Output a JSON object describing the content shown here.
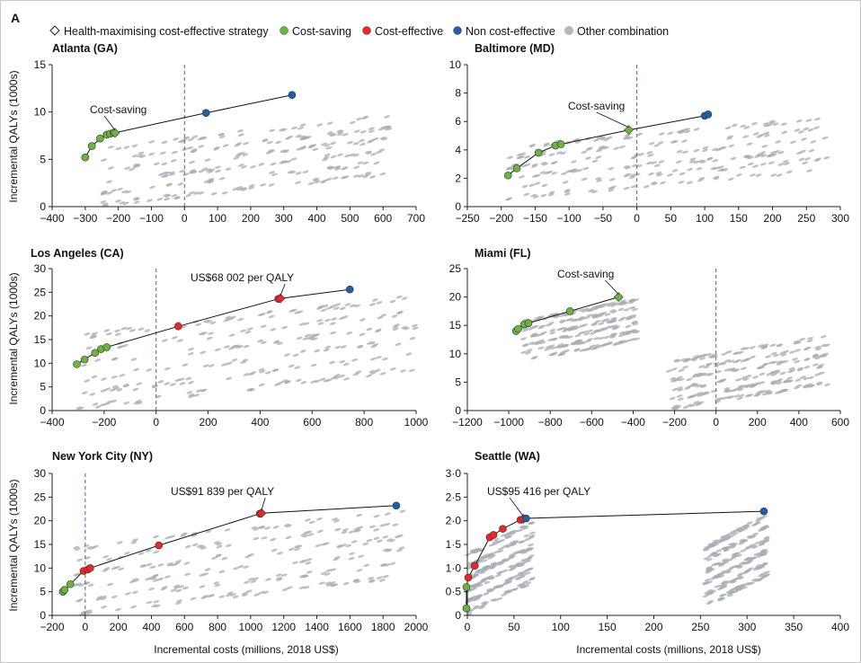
{
  "figure": {
    "panel_letter": "A",
    "x_axis_title": "Incremental costs (millions, 2018 US$)",
    "y_axis_title": "Incremental QALYs (1000s)"
  },
  "legend": [
    {
      "key": "health",
      "label": "Health-maximising cost-effective strategy",
      "marker": "diamond",
      "color": "#ffffff"
    },
    {
      "key": "saving",
      "label": "Cost-saving",
      "marker": "circle",
      "color": "#6db33f"
    },
    {
      "key": "effective",
      "label": "Cost-effective",
      "marker": "circle",
      "color": "#e8282b"
    },
    {
      "key": "noneffective",
      "label": "Non cost-effective",
      "marker": "circle",
      "color": "#1f5fa6"
    },
    {
      "key": "other",
      "label": "Other combination",
      "marker": "circle",
      "color": "#b4b9be"
    }
  ],
  "chart_data": [
    {
      "type": "scatter",
      "title": "Atlanta (GA)",
      "xlim": [
        -400,
        700
      ],
      "ylim": [
        0,
        15
      ],
      "xticks": [
        "−400",
        "−300",
        "−200",
        "−100",
        "0",
        "100",
        "200",
        "300",
        "400",
        "500",
        "600",
        "700"
      ],
      "xtick_values": [
        -400,
        -300,
        -200,
        -100,
        0,
        100,
        200,
        300,
        400,
        500,
        600,
        700
      ],
      "yticks": [
        "0",
        "5",
        "10",
        "15"
      ],
      "ytick_values": [
        0,
        5,
        10,
        15
      ],
      "zero_line": 0,
      "cloud": {
        "x_range": [
          -250,
          620
        ],
        "y_range": [
          0,
          9.5
        ]
      },
      "frontier": [
        {
          "x": -300,
          "y": 5.2,
          "class": "saving"
        },
        {
          "x": -280,
          "y": 6.4,
          "class": "saving"
        },
        {
          "x": -255,
          "y": 7.2,
          "class": "saving"
        },
        {
          "x": -235,
          "y": 7.6,
          "class": "saving"
        },
        {
          "x": -225,
          "y": 7.7,
          "class": "saving"
        },
        {
          "x": -215,
          "y": 7.8,
          "class": "saving"
        },
        {
          "x": -210,
          "y": 7.8,
          "class": "health"
        },
        {
          "x": 65,
          "y": 9.9,
          "class": "noneffective"
        },
        {
          "x": 325,
          "y": 11.8,
          "class": "noneffective"
        }
      ],
      "annotation": {
        "text": "Cost-saving",
        "x": -210,
        "y": 7.8
      }
    },
    {
      "type": "scatter",
      "title": "Baltimore (MD)",
      "xlim": [
        -250,
        300
      ],
      "ylim": [
        0,
        10
      ],
      "xticks": [
        "−250",
        "−200",
        "−150",
        "−100",
        "−50",
        "0",
        "50",
        "100",
        "150",
        "200",
        "250",
        "300"
      ],
      "xtick_values": [
        -250,
        -200,
        -150,
        -100,
        -50,
        0,
        50,
        100,
        150,
        200,
        250,
        300
      ],
      "yticks": [
        "0",
        "2",
        "4",
        "6",
        "8",
        "10"
      ],
      "ytick_values": [
        0,
        2,
        4,
        6,
        8,
        10
      ],
      "zero_line": 0,
      "cloud": {
        "x_range": [
          -190,
          280
        ],
        "y_range": [
          0.5,
          6.2
        ]
      },
      "frontier": [
        {
          "x": -190,
          "y": 2.2,
          "class": "saving"
        },
        {
          "x": -177,
          "y": 2.7,
          "class": "saving"
        },
        {
          "x": -145,
          "y": 3.8,
          "class": "saving"
        },
        {
          "x": -120,
          "y": 4.3,
          "class": "saving"
        },
        {
          "x": -112,
          "y": 4.4,
          "class": "saving"
        },
        {
          "x": -12,
          "y": 5.4,
          "class": "health"
        },
        {
          "x": 100,
          "y": 6.4,
          "class": "noneffective"
        },
        {
          "x": 105,
          "y": 6.5,
          "class": "noneffective"
        }
      ],
      "annotation": {
        "text": "Cost-saving",
        "x": -12,
        "y": 5.4
      }
    },
    {
      "type": "scatter",
      "title": "Los Angeles (CA)",
      "xlim": [
        -400,
        1000
      ],
      "ylim": [
        0,
        30
      ],
      "xticks": [
        "−400",
        "−200",
        "0",
        "200",
        "400",
        "600",
        "800",
        "1000"
      ],
      "xtick_values": [
        -400,
        -200,
        0,
        200,
        400,
        600,
        800,
        1000
      ],
      "yticks": [
        "0",
        "5",
        "10",
        "15",
        "20",
        "25",
        "30"
      ],
      "ytick_values": [
        0,
        5,
        10,
        15,
        20,
        25,
        30
      ],
      "zero_line": 0,
      "cloud": {
        "x_range": [
          -300,
          1000
        ],
        "y_range": [
          0,
          24
        ]
      },
      "frontier": [
        {
          "x": -305,
          "y": 9.8,
          "class": "saving"
        },
        {
          "x": -275,
          "y": 10.8,
          "class": "saving"
        },
        {
          "x": -235,
          "y": 12.2,
          "class": "saving"
        },
        {
          "x": -212,
          "y": 13.0,
          "class": "saving"
        },
        {
          "x": -190,
          "y": 13.4,
          "class": "saving"
        },
        {
          "x": 85,
          "y": 17.8,
          "class": "effective"
        },
        {
          "x": 470,
          "y": 23.6,
          "class": "effective"
        },
        {
          "x": 478,
          "y": 23.7,
          "class": "health"
        },
        {
          "x": 745,
          "y": 25.6,
          "class": "noneffective"
        }
      ],
      "annotation": {
        "text": "US$68 002 per QALY",
        "x": 478,
        "y": 23.7
      }
    },
    {
      "type": "scatter",
      "title": "Miami (FL)",
      "xlim": [
        -1200,
        600
      ],
      "ylim": [
        0,
        25
      ],
      "xticks": [
        "−1200",
        "−1000",
        "−800",
        "−600",
        "−400",
        "−200",
        "0",
        "200",
        "400",
        "600"
      ],
      "xtick_values": [
        -1200,
        -1000,
        -800,
        -600,
        -400,
        -200,
        0,
        200,
        400,
        600
      ],
      "yticks": [
        "0",
        "5",
        "10",
        "15",
        "20",
        "25"
      ],
      "ytick_values": [
        0,
        5,
        10,
        15,
        20,
        25
      ],
      "zero_line": 0,
      "clouds": [
        {
          "x_range": [
            -930,
            -380
          ],
          "y_range": [
            8.5,
            19.5
          ]
        },
        {
          "x_range": [
            -230,
            540
          ],
          "y_range": [
            0,
            13
          ]
        }
      ],
      "frontier": [
        {
          "x": -965,
          "y": 14.0,
          "class": "saving"
        },
        {
          "x": -955,
          "y": 14.4,
          "class": "saving"
        },
        {
          "x": -925,
          "y": 15.2,
          "class": "saving"
        },
        {
          "x": -905,
          "y": 15.4,
          "class": "saving"
        },
        {
          "x": -705,
          "y": 17.5,
          "class": "saving"
        },
        {
          "x": -470,
          "y": 20.0,
          "class": "health"
        }
      ],
      "annotation": {
        "text": "Cost-saving",
        "x": -470,
        "y": 20.0
      }
    },
    {
      "type": "scatter",
      "title": "New York City (NY)",
      "xlim": [
        -200,
        2000
      ],
      "ylim": [
        0,
        30
      ],
      "xticks": [
        "−200",
        "0",
        "200",
        "400",
        "600",
        "800",
        "1000",
        "1200",
        "1400",
        "1600",
        "1800",
        "2000"
      ],
      "xtick_values": [
        -200,
        0,
        200,
        400,
        600,
        800,
        1000,
        1200,
        1400,
        1600,
        1800,
        2000
      ],
      "yticks": [
        "0",
        "5",
        "10",
        "15",
        "20",
        "25",
        "30"
      ],
      "ytick_values": [
        0,
        5,
        10,
        15,
        20,
        25,
        30
      ],
      "zero_line": 0,
      "cloud": {
        "x_range": [
          -60,
          1920
        ],
        "y_range": [
          0,
          22
        ]
      },
      "frontier": [
        {
          "x": -135,
          "y": 5.0,
          "class": "saving"
        },
        {
          "x": -125,
          "y": 5.4,
          "class": "saving"
        },
        {
          "x": -90,
          "y": 6.6,
          "class": "saving"
        },
        {
          "x": -10,
          "y": 9.4,
          "class": "effective"
        },
        {
          "x": 15,
          "y": 9.7,
          "class": "effective"
        },
        {
          "x": 30,
          "y": 10.0,
          "class": "effective"
        },
        {
          "x": 445,
          "y": 14.8,
          "class": "effective"
        },
        {
          "x": 1055,
          "y": 21.5,
          "class": "effective"
        },
        {
          "x": 1065,
          "y": 21.6,
          "class": "health"
        },
        {
          "x": 1880,
          "y": 23.2,
          "class": "noneffective"
        }
      ],
      "annotation": {
        "text": "US$91 839 per QALY",
        "x": 1065,
        "y": 21.6
      }
    },
    {
      "type": "scatter",
      "title": "Seattle (WA)",
      "xlim": [
        0,
        400
      ],
      "ylim": [
        0,
        3
      ],
      "xticks": [
        "0",
        "50",
        "100",
        "150",
        "200",
        "250",
        "300",
        "350",
        "400"
      ],
      "xtick_values": [
        0,
        50,
        100,
        150,
        200,
        250,
        300,
        350,
        400
      ],
      "yticks": [
        "0",
        "0·5",
        "1·0",
        "1·5",
        "2·0",
        "2·5",
        "3·0"
      ],
      "ytick_values": [
        0,
        0.5,
        1,
        1.5,
        2,
        2.5,
        3
      ],
      "zero_line": null,
      "clouds": [
        {
          "x_range": [
            0,
            70
          ],
          "y_range": [
            0,
            1.95
          ]
        },
        {
          "x_range": [
            255,
            322
          ],
          "y_range": [
            0.15,
            2.1
          ]
        }
      ],
      "frontier": [
        {
          "x": -1,
          "y": 0.15,
          "class": "saving"
        },
        {
          "x": -1,
          "y": 0.6,
          "class": "saving"
        },
        {
          "x": 1,
          "y": 0.8,
          "class": "effective"
        },
        {
          "x": 8,
          "y": 1.05,
          "class": "effective"
        },
        {
          "x": 24,
          "y": 1.65,
          "class": "effective"
        },
        {
          "x": 28,
          "y": 1.7,
          "class": "effective"
        },
        {
          "x": 38,
          "y": 1.83,
          "class": "effective"
        },
        {
          "x": 57,
          "y": 2.02,
          "class": "effective"
        },
        {
          "x": 60,
          "y": 2.04,
          "class": "health"
        },
        {
          "x": 63,
          "y": 2.05,
          "class": "noneffective"
        },
        {
          "x": 318,
          "y": 2.2,
          "class": "noneffective"
        }
      ],
      "annotation": {
        "text": "US$95 416 per QALY",
        "x": 60,
        "y": 2.04
      }
    }
  ]
}
